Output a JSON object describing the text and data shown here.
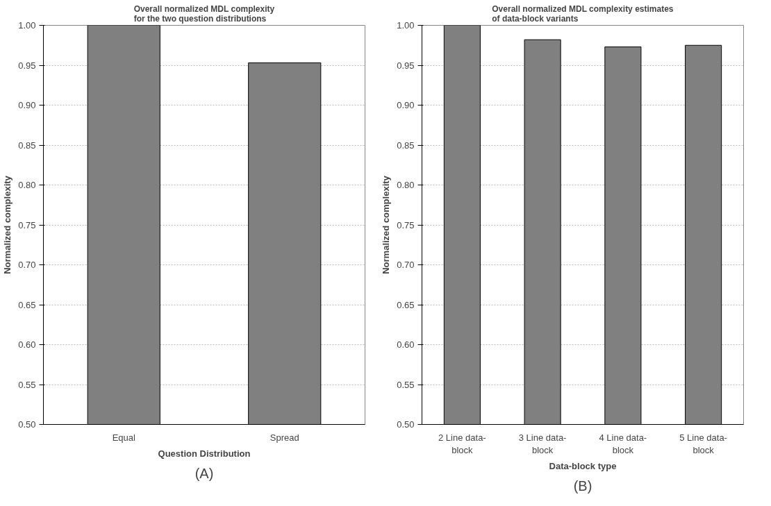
{
  "chart_data": [
    {
      "type": "bar",
      "title": "Overall normalized MDL complexity\nfor the two question distributions",
      "xlabel": "Question Distribution",
      "ylabel": "Normalized complexity",
      "categories": [
        "Equal",
        "Spread"
      ],
      "values": [
        1.0,
        0.953
      ],
      "color": "#808080",
      "ylim": [
        0.5,
        1.0
      ],
      "yticks": [
        {
          "value": 0.5,
          "label": "0.50"
        },
        0.55,
        {
          "value": 0.6,
          "label": "0.60"
        },
        0.65,
        {
          "value": 0.7,
          "label": "0.70"
        },
        0.75,
        {
          "value": 0.8,
          "label": "0.80"
        },
        0.85,
        {
          "value": 0.9,
          "label": "0.90"
        },
        0.95,
        {
          "value": 1.0,
          "label": "1.00"
        }
      ],
      "grid": "y",
      "annotations": [
        "(A)"
      ]
    },
    {
      "type": "bar",
      "title": "Overall normalized MDL complexity estimates\nof data-block variants",
      "xlabel": "Data-block type",
      "ylabel": "Normalized complexity",
      "categories": [
        "2 Line data-\nblock",
        "3 Line data-\nblock",
        "4 Line data-\nblock",
        "5 Line data-\nblock"
      ],
      "values": [
        1.0,
        0.982,
        0.973,
        0.975
      ],
      "color": "#808080",
      "ylim": [
        0.5,
        1.0
      ],
      "yticks": [
        {
          "value": 0.5,
          "label": "0.50"
        },
        0.55,
        {
          "value": 0.6,
          "label": "0.60"
        },
        0.65,
        {
          "value": 0.7,
          "label": "0.70"
        },
        0.75,
        {
          "value": 0.8,
          "label": "0.80"
        },
        0.85,
        {
          "value": 0.9,
          "label": "0.90"
        },
        0.95,
        {
          "value": 1.0,
          "label": "1.00"
        }
      ],
      "grid": "y",
      "annotations": [
        "(B)"
      ]
    }
  ]
}
